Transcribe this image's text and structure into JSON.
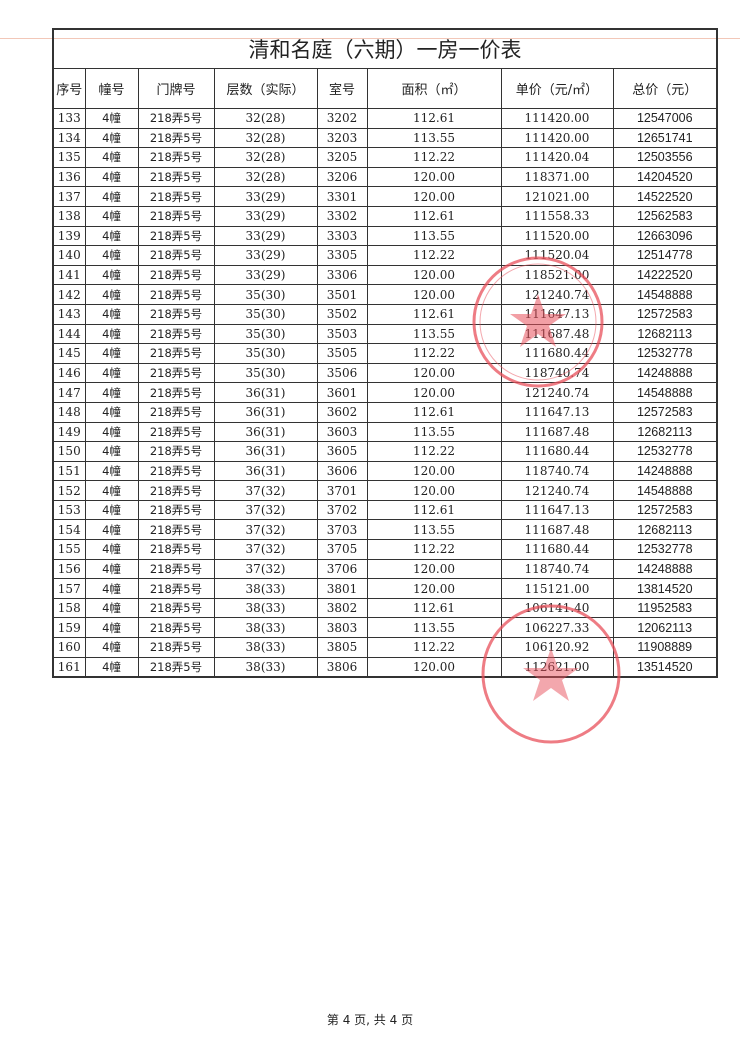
{
  "title": "清和名庭（六期）一房一价表",
  "headers": [
    "序号",
    "幢号",
    "门牌号",
    "层数（实际）",
    "室号",
    "面积（㎡）",
    "单价（元/㎡）",
    "总价（元）"
  ],
  "rows": [
    [
      "133",
      "4幢",
      "218弄5号",
      "32(28)",
      "3202",
      "112.61",
      "111420.00",
      "12547006"
    ],
    [
      "134",
      "4幢",
      "218弄5号",
      "32(28)",
      "3203",
      "113.55",
      "111420.00",
      "12651741"
    ],
    [
      "135",
      "4幢",
      "218弄5号",
      "32(28)",
      "3205",
      "112.22",
      "111420.04",
      "12503556"
    ],
    [
      "136",
      "4幢",
      "218弄5号",
      "32(28)",
      "3206",
      "120.00",
      "118371.00",
      "14204520"
    ],
    [
      "137",
      "4幢",
      "218弄5号",
      "33(29)",
      "3301",
      "120.00",
      "121021.00",
      "14522520"
    ],
    [
      "138",
      "4幢",
      "218弄5号",
      "33(29)",
      "3302",
      "112.61",
      "111558.33",
      "12562583"
    ],
    [
      "139",
      "4幢",
      "218弄5号",
      "33(29)",
      "3303",
      "113.55",
      "111520.00",
      "12663096"
    ],
    [
      "140",
      "4幢",
      "218弄5号",
      "33(29)",
      "3305",
      "112.22",
      "111520.04",
      "12514778"
    ],
    [
      "141",
      "4幢",
      "218弄5号",
      "33(29)",
      "3306",
      "120.00",
      "118521.00",
      "14222520"
    ],
    [
      "142",
      "4幢",
      "218弄5号",
      "35(30)",
      "3501",
      "120.00",
      "121240.74",
      "14548888"
    ],
    [
      "143",
      "4幢",
      "218弄5号",
      "35(30)",
      "3502",
      "112.61",
      "111647.13",
      "12572583"
    ],
    [
      "144",
      "4幢",
      "218弄5号",
      "35(30)",
      "3503",
      "113.55",
      "111687.48",
      "12682113"
    ],
    [
      "145",
      "4幢",
      "218弄5号",
      "35(30)",
      "3505",
      "112.22",
      "111680.44",
      "12532778"
    ],
    [
      "146",
      "4幢",
      "218弄5号",
      "35(30)",
      "3506",
      "120.00",
      "118740.74",
      "14248888"
    ],
    [
      "147",
      "4幢",
      "218弄5号",
      "36(31)",
      "3601",
      "120.00",
      "121240.74",
      "14548888"
    ],
    [
      "148",
      "4幢",
      "218弄5号",
      "36(31)",
      "3602",
      "112.61",
      "111647.13",
      "12572583"
    ],
    [
      "149",
      "4幢",
      "218弄5号",
      "36(31)",
      "3603",
      "113.55",
      "111687.48",
      "12682113"
    ],
    [
      "150",
      "4幢",
      "218弄5号",
      "36(31)",
      "3605",
      "112.22",
      "111680.44",
      "12532778"
    ],
    [
      "151",
      "4幢",
      "218弄5号",
      "36(31)",
      "3606",
      "120.00",
      "118740.74",
      "14248888"
    ],
    [
      "152",
      "4幢",
      "218弄5号",
      "37(32)",
      "3701",
      "120.00",
      "121240.74",
      "14548888"
    ],
    [
      "153",
      "4幢",
      "218弄5号",
      "37(32)",
      "3702",
      "112.61",
      "111647.13",
      "12572583"
    ],
    [
      "154",
      "4幢",
      "218弄5号",
      "37(32)",
      "3703",
      "113.55",
      "111687.48",
      "12682113"
    ],
    [
      "155",
      "4幢",
      "218弄5号",
      "37(32)",
      "3705",
      "112.22",
      "111680.44",
      "12532778"
    ],
    [
      "156",
      "4幢",
      "218弄5号",
      "37(32)",
      "3706",
      "120.00",
      "118740.74",
      "14248888"
    ],
    [
      "157",
      "4幢",
      "218弄5号",
      "38(33)",
      "3801",
      "120.00",
      "115121.00",
      "13814520"
    ],
    [
      "158",
      "4幢",
      "218弄5号",
      "38(33)",
      "3802",
      "112.61",
      "106141.40",
      "11952583"
    ],
    [
      "159",
      "4幢",
      "218弄5号",
      "38(33)",
      "3803",
      "113.55",
      "106227.33",
      "12062113"
    ],
    [
      "160",
      "4幢",
      "218弄5号",
      "38(33)",
      "3805",
      "112.22",
      "106120.92",
      "11908889"
    ],
    [
      "161",
      "4幢",
      "218弄5号",
      "38(33)",
      "3806",
      "120.00",
      "112621.00",
      "13514520"
    ]
  ],
  "stamps": {
    "color": "#e8505b",
    "seal1_text": "上海市徐汇区住房保障和房屋管理局",
    "seal2_text": "上海新长桥企业发展有限公司"
  },
  "footer": "第 4 页, 共 4 页"
}
